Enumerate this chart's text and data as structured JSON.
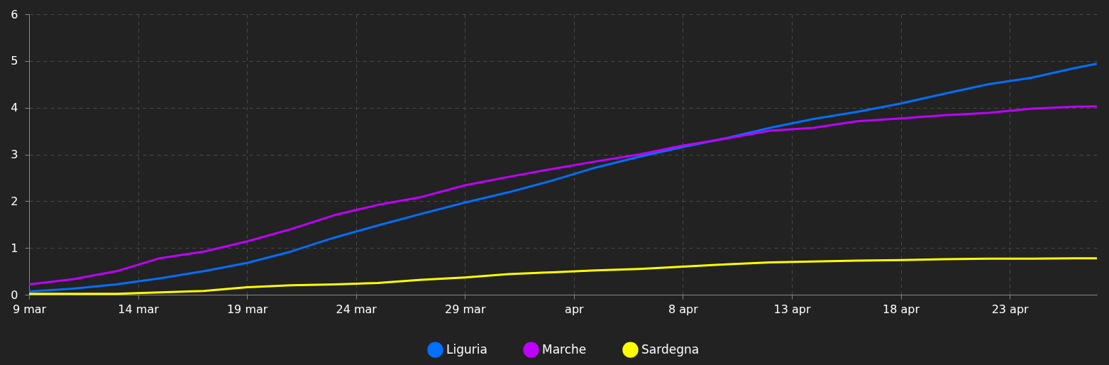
{
  "chart_data": {
    "type": "line",
    "x": [
      "--03-09",
      "--03-11",
      "--03-13",
      "--03-15",
      "--03-17",
      "--03-19",
      "--03-21",
      "--03-23",
      "--03-25",
      "--03-27",
      "--03-29",
      "--03-31",
      "--04-02",
      "--04-04",
      "--04-06",
      "--04-08",
      "--04-10",
      "--04-12",
      "--04-14",
      "--04-16",
      "--04-18",
      "--04-20",
      "--04-22",
      "--04-24",
      "--04-26",
      "--04-27"
    ],
    "series": [
      {
        "name": "Liguria",
        "color": "#0070ff",
        "values": [
          0.07,
          0.13,
          0.22,
          0.35,
          0.5,
          0.68,
          0.92,
          1.22,
          1.48,
          1.73,
          1.97,
          2.19,
          2.44,
          2.72,
          2.95,
          3.16,
          3.35,
          3.57,
          3.76,
          3.91,
          4.09,
          4.3,
          4.5,
          4.64,
          4.85,
          4.94
        ]
      },
      {
        "name": "Marche",
        "color": "#c000ff",
        "values": [
          0.22,
          0.33,
          0.5,
          0.78,
          0.92,
          1.14,
          1.4,
          1.7,
          1.92,
          2.09,
          2.34,
          2.52,
          2.69,
          2.85,
          3.0,
          3.19,
          3.34,
          3.51,
          3.57,
          3.71,
          3.77,
          3.84,
          3.89,
          3.98,
          4.02,
          4.03
        ]
      },
      {
        "name": "Sardegna",
        "color": "#ffff00",
        "values": [
          0.02,
          0.02,
          0.02,
          0.05,
          0.08,
          0.16,
          0.2,
          0.22,
          0.25,
          0.32,
          0.37,
          0.44,
          0.48,
          0.52,
          0.55,
          0.6,
          0.65,
          0.69,
          0.71,
          0.73,
          0.74,
          0.76,
          0.77,
          0.77,
          0.78,
          0.78
        ]
      }
    ],
    "xlim": [
      "--03-09",
      "--04-27"
    ],
    "xticks": [
      {
        "value": "--03-09",
        "label": "9 mar"
      },
      {
        "value": "--03-14",
        "label": "14 mar"
      },
      {
        "value": "--03-19",
        "label": "19 mar"
      },
      {
        "value": "--03-24",
        "label": "24 mar"
      },
      {
        "value": "--03-29",
        "label": "29 mar"
      },
      {
        "value": "--04-03",
        "label": "apr"
      },
      {
        "value": "--04-08",
        "label": "8 apr"
      },
      {
        "value": "--04-13",
        "label": "13 apr"
      },
      {
        "value": "--04-18",
        "label": "18 apr"
      },
      {
        "value": "--04-23",
        "label": "23 apr"
      }
    ],
    "ylim": [
      0,
      6
    ],
    "yticks": [
      0,
      1,
      2,
      3,
      4,
      5,
      6
    ],
    "grid": true,
    "legend": "bottom"
  }
}
